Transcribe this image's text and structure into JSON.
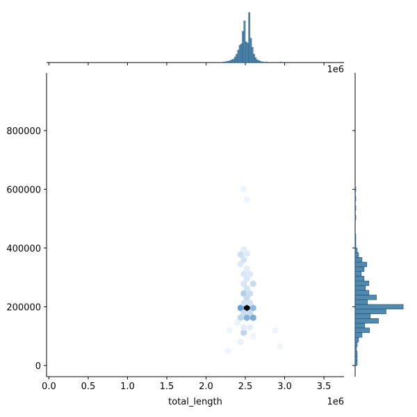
{
  "chart_data": {
    "type": "hexbin-joint",
    "x_label": "total_length",
    "x_offset_label": "1e6",
    "xlim": [
      -30000,
      3756000
    ],
    "xticks": [
      {
        "value": 0,
        "label": "0.0"
      },
      {
        "value": 500000,
        "label": "0.5"
      },
      {
        "value": 1000000,
        "label": "1.0"
      },
      {
        "value": 1500000,
        "label": "1.5"
      },
      {
        "value": 2000000,
        "label": "2.0"
      },
      {
        "value": 2500000,
        "label": "2.5"
      },
      {
        "value": 3000000,
        "label": "3.0"
      },
      {
        "value": 3500000,
        "label": "3.5"
      }
    ],
    "ylim": [
      -38000,
      996000
    ],
    "yticks": [
      0,
      200000,
      400000,
      600000,
      800000
    ],
    "colormap": [
      "#f4f9fe",
      "#4c8fc6",
      "#000000"
    ],
    "hexes": {
      "x": [
        2520000,
        2440000,
        2600000,
        2520000,
        2600000,
        2440000,
        2480000,
        2560000,
        2480000,
        2560000,
        2480000,
        2560000,
        2520000,
        2520000,
        2600000,
        2480000,
        2520000,
        2480000,
        2560000,
        2440000,
        2480000,
        2440000,
        2520000,
        2480000,
        2520000,
        2480000,
        2400000,
        2560000,
        2480000,
        2300000,
        2600000,
        2480000,
        2520000,
        2280000,
        2440000,
        2880000,
        2940000
      ],
      "y": [
        196000,
        196000,
        196000,
        163000,
        163000,
        163000,
        180000,
        180000,
        212000,
        212000,
        245000,
        245000,
        230000,
        262000,
        278000,
        278000,
        296000,
        312000,
        312000,
        345000,
        360000,
        378000,
        380000,
        395000,
        330000,
        112000,
        146000,
        130000,
        130000,
        120000,
        100000,
        600000,
        565000,
        50000,
        80000,
        120000,
        65000
      ],
      "counts": [
        60,
        25,
        18,
        20,
        22,
        10,
        8,
        8,
        6,
        6,
        12,
        7,
        8,
        6,
        8,
        5,
        5,
        5,
        4,
        4,
        6,
        7,
        4,
        3,
        3,
        10,
        2,
        3,
        3,
        1,
        1,
        1,
        1,
        1,
        2,
        1,
        1
      ]
    },
    "hist_color": "#3274a1",
    "top_hist": {
      "ylim": [
        0,
        75
      ],
      "bins": [
        2200000,
        2220000,
        2240000,
        2260000,
        2280000,
        2300000,
        2320000,
        2340000,
        2360000,
        2380000,
        2400000,
        2420000,
        2440000,
        2460000,
        2480000,
        2500000,
        2520000,
        2540000,
        2560000,
        2580000,
        2600000,
        2620000,
        2640000,
        2660000,
        2680000,
        2700000,
        2720000,
        2740000,
        2760000,
        2780000,
        2800000,
        2820000,
        2840000,
        2860000,
        2880000,
        2900000,
        2920000,
        2940000,
        2960000,
        2980000,
        3000000
      ],
      "counts": [
        0,
        1,
        1,
        2,
        2,
        3,
        4,
        5,
        8,
        12,
        18,
        25,
        27,
        45,
        60,
        30,
        28,
        72,
        35,
        22,
        12,
        7,
        4,
        3,
        2,
        1,
        1,
        0,
        1,
        0,
        0,
        0,
        0,
        0,
        0,
        0,
        0,
        1,
        0,
        0
      ]
    },
    "right_hist": {
      "xlim": [
        0,
        86
      ],
      "bins": [
        0,
        16000,
        32000,
        48000,
        64000,
        80000,
        96000,
        112000,
        128000,
        144000,
        160000,
        176000,
        192000,
        208000,
        224000,
        240000,
        256000,
        272000,
        288000,
        304000,
        320000,
        336000,
        352000,
        368000,
        384000,
        400000,
        416000,
        432000,
        448000,
        464000,
        480000,
        496000,
        512000,
        528000,
        544000,
        560000,
        576000,
        592000,
        608000
      ],
      "counts": [
        3,
        3,
        3,
        2,
        3,
        5,
        10,
        21,
        14,
        34,
        22,
        45,
        70,
        18,
        31,
        20,
        15,
        20,
        13,
        9,
        13,
        17,
        10,
        5,
        3,
        1,
        1,
        1,
        0,
        0,
        0,
        1,
        0,
        1,
        0,
        1,
        0,
        1
      ]
    }
  }
}
